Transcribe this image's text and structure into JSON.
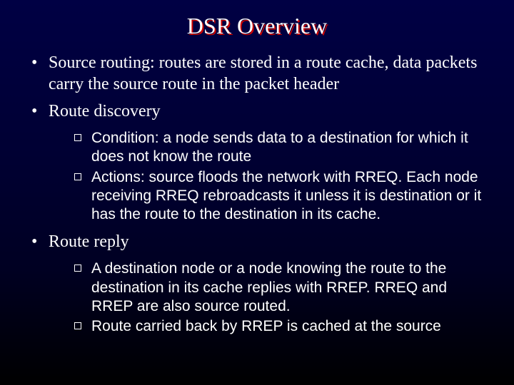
{
  "title": "DSR Overview",
  "title_color": "#ffffff",
  "title_shadow_color": "#cc0000",
  "title_fontsize": 32,
  "body_color": "#ffffff",
  "level1_fontsize": 24,
  "level2_fontsize": 21,
  "background_gradient": [
    "#000044",
    "#000033",
    "#000022",
    "#000000"
  ],
  "bullets": [
    {
      "text": "Source routing: routes are stored in a route cache, data packets carry the source route in the packet header",
      "sub": []
    },
    {
      "text": "Route discovery",
      "sub": [
        "Condition: a node sends data to a destination for which it does not know the route",
        "Actions: source floods the network with RREQ. Each node receiving RREQ rebroadcasts it unless it is destination or it has the route to the destination in its cache."
      ]
    },
    {
      "text": "Route reply",
      "sub": [
        "A destination node or a node knowing the route to the destination in its cache replies with RREP. RREQ and RREP are also source routed.",
        "Route carried back by RREP is cached at the source"
      ]
    }
  ]
}
